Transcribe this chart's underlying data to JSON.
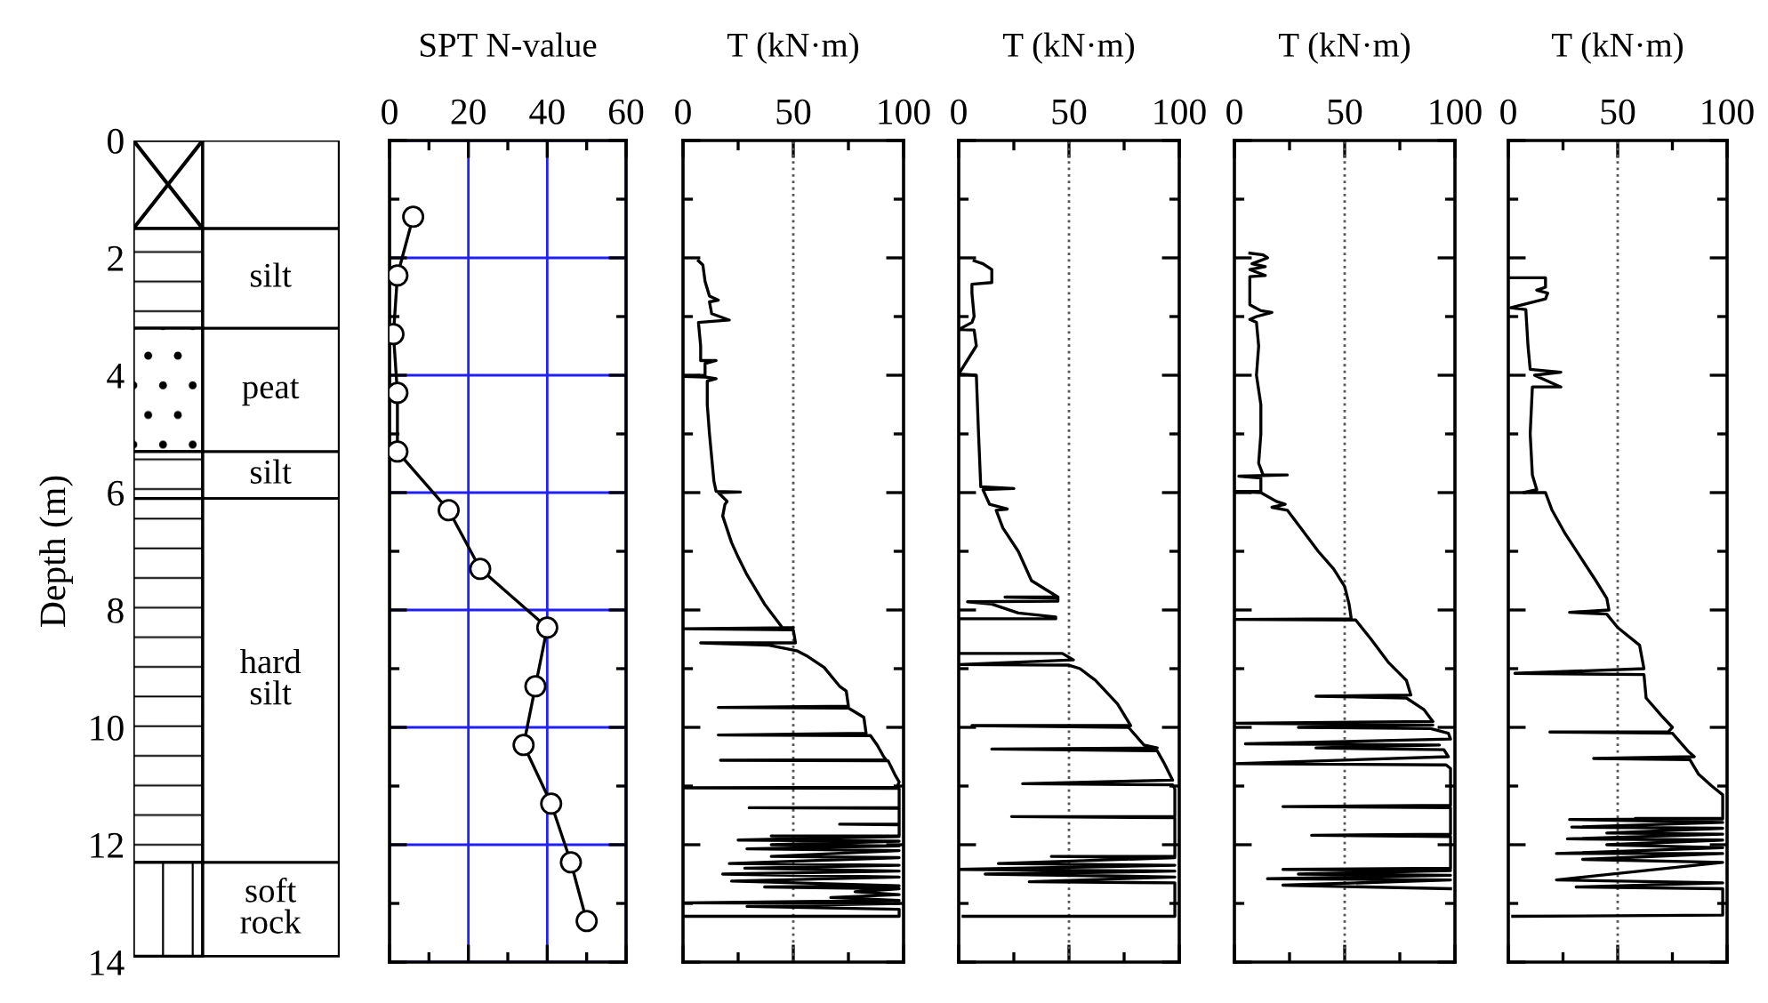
{
  "chart_data": [
    {
      "type": "bar",
      "stacked": true,
      "categories": [
        null
      ],
      "ylabel": "Depth (m)",
      "ylim": [
        14,
        0
      ],
      "yticks": [
        0,
        2,
        4,
        6,
        8,
        10,
        12,
        14
      ],
      "tick_labels": "y",
      "series": [
        {
          "color": "#ffffff",
          "values": [
            1.5
          ]
        },
        {
          "name": "silt",
          "color": "#ffffff",
          "values": [
            1.7
          ]
        },
        {
          "name": "peat",
          "color": "#ffffff",
          "values": [
            2.1
          ]
        },
        {
          "name": "silt",
          "color": "#ffffff",
          "values": [
            0.8
          ]
        },
        {
          "name": "hard\nsilt",
          "color": "#ffffff",
          "values": [
            6.2
          ]
        },
        {
          "name": "soft\nrock",
          "color": "#ffffff",
          "values": [
            1.6
          ]
        }
      ]
    },
    {
      "type": "line",
      "title": "SPT N-value",
      "marker": "circle",
      "grid": true,
      "tick_labels": "x",
      "xlim": [
        0,
        60
      ],
      "xticks": [
        0,
        20,
        40,
        60
      ],
      "ylim": [
        14,
        0
      ],
      "yticks": [
        {
          "value": 0,
          "label": null
        },
        {
          "value": 2,
          "label": null
        },
        {
          "value": 4,
          "label": null
        },
        {
          "value": 6,
          "label": null
        },
        {
          "value": 8,
          "label": null
        },
        {
          "value": 10,
          "label": null
        },
        {
          "value": 12,
          "label": null
        },
        {
          "value": 14,
          "label": null
        }
      ],
      "series": [
        {
          "color": "#000000",
          "x": [
            6,
            2,
            1,
            2,
            2,
            15,
            23,
            40,
            37,
            34,
            41,
            46,
            50
          ],
          "values": [
            1.3,
            2.3,
            3.3,
            4.3,
            5.3,
            6.3,
            7.3,
            8.3,
            9.3,
            10.3,
            11.3,
            12.3,
            13.3
          ]
        }
      ]
    },
    {
      "type": "line",
      "title": "T (kN·m)",
      "tick_labels": "x",
      "xlim": [
        0,
        100
      ],
      "xticks": [
        0,
        50,
        100
      ],
      "ylim": [
        14,
        0
      ],
      "yticks": [
        {
          "value": 0,
          "label": null
        },
        {
          "value": 2,
          "label": null
        },
        {
          "value": 4,
          "label": null
        },
        {
          "value": 6,
          "label": null
        },
        {
          "value": 8,
          "label": null
        },
        {
          "value": 10,
          "label": null
        },
        {
          "value": 12,
          "label": null
        },
        {
          "value": 14,
          "label": null
        }
      ],
      "ref_lines": [
        {
          "axis": "x",
          "value": 50,
          "line_style": "dotted",
          "color": "#555555"
        }
      ],
      "series": [
        {
          "color": "#000000",
          "x": [
            7,
            9,
            10,
            12,
            16,
            12,
            13,
            21,
            7,
            8,
            8,
            15,
            10,
            10,
            0,
            10,
            15,
            11,
            11,
            12,
            14,
            15,
            26,
            16,
            20,
            19,
            18,
            22,
            25,
            29,
            37,
            45,
            50,
            0,
            50,
            51,
            8,
            39,
            52,
            56,
            64,
            71,
            74,
            75,
            16,
            75,
            82,
            83,
            16,
            85,
            88,
            91,
            92,
            17,
            93,
            96,
            98,
            97,
            0,
            98,
            98,
            30,
            98,
            98,
            71,
            98,
            98,
            40,
            98,
            25,
            98,
            40,
            98,
            29,
            98,
            40,
            98,
            21,
            98,
            28,
            98,
            18,
            98,
            22,
            98,
            37,
            98,
            78,
            98,
            67,
            98,
            0,
            98,
            29,
            98,
            98,
            0
          ],
          "values": [
            2.05,
            2.12,
            2.4,
            2.65,
            2.72,
            2.75,
            2.95,
            3.06,
            3.1,
            3.5,
            3.75,
            3.75,
            3.8,
            4.0,
            4.02,
            4.03,
            4.06,
            4.1,
            4.5,
            5.0,
            5.8,
            5.98,
            5.99,
            6.0,
            6.15,
            6.2,
            6.4,
            6.85,
            7.1,
            7.4,
            7.9,
            8.3,
            8.3,
            8.32,
            8.34,
            8.56,
            8.56,
            8.6,
            8.7,
            8.78,
            8.98,
            9.3,
            9.38,
            9.64,
            9.66,
            9.67,
            9.83,
            10.1,
            10.13,
            10.14,
            10.3,
            10.5,
            10.55,
            10.56,
            10.57,
            10.8,
            10.93,
            11.02,
            11.03,
            11.04,
            11.37,
            11.37,
            11.38,
            11.65,
            11.65,
            11.66,
            11.85,
            11.85,
            11.86,
            11.92,
            11.94,
            12.0,
            12.02,
            12.07,
            12.1,
            12.2,
            12.22,
            12.32,
            12.35,
            12.4,
            12.45,
            12.5,
            12.55,
            12.62,
            12.7,
            12.72,
            12.75,
            12.8,
            12.85,
            12.9,
            12.95,
            12.99,
            13.0,
            13.05,
            13.1,
            13.22,
            13.22
          ]
        }
      ]
    },
    {
      "type": "line",
      "title": "T (kN·m)",
      "tick_labels": "x",
      "xlim": [
        0,
        100
      ],
      "xticks": [
        0,
        50,
        100
      ],
      "ylim": [
        14,
        0
      ],
      "yticks": [
        {
          "value": 0,
          "label": null
        },
        {
          "value": 2,
          "label": null
        },
        {
          "value": 4,
          "label": null
        },
        {
          "value": 6,
          "label": null
        },
        {
          "value": 8,
          "label": null
        },
        {
          "value": 10,
          "label": null
        },
        {
          "value": 12,
          "label": null
        },
        {
          "value": 14,
          "label": null
        }
      ],
      "ref_lines": [
        {
          "axis": "x",
          "value": 50,
          "line_style": "dotted",
          "color": "#555555"
        }
      ],
      "series": [
        {
          "color": "#000000",
          "x": [
            7,
            11,
            15,
            15,
            6,
            6,
            7,
            6,
            0,
            7,
            8,
            0,
            8,
            9,
            10,
            25,
            11,
            14,
            22,
            17,
            20,
            27,
            33,
            45,
            21,
            45,
            45,
            4,
            15,
            27,
            44,
            44,
            0,
            0,
            47,
            52,
            0,
            50,
            55,
            62,
            72,
            78,
            6,
            77,
            84,
            90,
            15,
            90,
            93,
            97,
            29,
            97,
            98,
            98,
            24,
            98,
            98,
            42,
            98,
            18,
            98,
            0,
            98,
            12,
            98,
            32,
            98,
            98,
            2
          ],
          "values": [
            2.05,
            2.1,
            2.2,
            2.42,
            2.45,
            2.6,
            3.0,
            3.1,
            3.22,
            3.23,
            3.5,
            3.98,
            4.0,
            5.0,
            5.9,
            5.93,
            5.95,
            6.2,
            6.28,
            6.3,
            6.6,
            7.0,
            7.5,
            7.78,
            7.78,
            7.8,
            7.85,
            7.86,
            7.9,
            8.05,
            8.12,
            8.15,
            8.15,
            8.74,
            8.74,
            8.85,
            8.93,
            8.94,
            9.0,
            9.2,
            9.6,
            9.97,
            9.97,
            10.0,
            10.3,
            10.35,
            10.37,
            10.4,
            10.6,
            10.9,
            10.96,
            10.98,
            11.05,
            11.52,
            11.52,
            11.54,
            12.2,
            12.2,
            12.22,
            12.32,
            12.35,
            12.42,
            12.45,
            12.5,
            12.55,
            12.63,
            12.65,
            13.22,
            13.22
          ]
        }
      ]
    },
    {
      "type": "line",
      "title": "T (kN·m)",
      "tick_labels": "x",
      "xlim": [
        0,
        100
      ],
      "xticks": [
        0,
        50,
        100
      ],
      "ylim": [
        14,
        0
      ],
      "yticks": [
        {
          "value": 0,
          "label": null
        },
        {
          "value": 2,
          "label": null
        },
        {
          "value": 4,
          "label": null
        },
        {
          "value": 6,
          "label": null
        },
        {
          "value": 8,
          "label": null
        },
        {
          "value": 10,
          "label": null
        },
        {
          "value": 12,
          "label": null
        },
        {
          "value": 14,
          "label": null
        }
      ],
      "ref_lines": [
        {
          "axis": "x",
          "value": 50,
          "line_style": "dotted",
          "color": "#555555"
        }
      ],
      "series": [
        {
          "color": "#000000",
          "x": [
            7,
            13,
            15,
            8,
            14,
            7,
            14,
            7,
            7,
            12,
            17,
            10,
            7,
            10,
            11,
            10,
            12,
            12,
            11,
            13,
            24,
            2,
            12,
            12,
            0,
            12,
            19,
            23,
            17,
            24,
            30,
            38,
            45,
            50,
            52,
            53,
            0,
            55,
            62,
            70,
            78,
            80,
            37,
            78,
            86,
            90,
            0,
            90,
            29,
            89,
            97,
            98,
            5,
            93,
            37,
            95,
            97,
            0,
            96,
            98,
            98,
            22,
            98,
            98,
            35,
            98,
            98,
            22,
            98,
            29,
            98,
            15,
            98,
            22,
            98
          ],
          "values": [
            1.92,
            1.95,
            2.0,
            2.1,
            2.15,
            2.2,
            2.3,
            2.32,
            2.8,
            2.9,
            2.93,
            3.0,
            3.05,
            3.1,
            3.5,
            4.0,
            4.5,
            5.0,
            5.5,
            5.7,
            5.7,
            5.72,
            5.75,
            5.98,
            5.98,
            6.0,
            6.15,
            6.2,
            6.25,
            6.3,
            6.6,
            7.0,
            7.3,
            7.6,
            7.9,
            8.15,
            8.16,
            8.17,
            8.5,
            8.9,
            9.2,
            9.45,
            9.47,
            9.5,
            9.7,
            9.9,
            9.93,
            9.96,
            10.0,
            10.02,
            10.1,
            10.2,
            10.28,
            10.3,
            10.35,
            10.38,
            10.5,
            10.62,
            10.64,
            10.7,
            11.33,
            11.35,
            11.37,
            11.82,
            11.84,
            11.86,
            12.4,
            12.42,
            12.44,
            12.5,
            12.52,
            12.58,
            12.6,
            12.69,
            12.75
          ]
        }
      ]
    },
    {
      "type": "line",
      "title": "T (kN·m)",
      "tick_labels": "x",
      "xlim": [
        0,
        100
      ],
      "xticks": [
        0,
        50,
        100
      ],
      "ylim": [
        14,
        0
      ],
      "yticks": [
        {
          "value": 0,
          "label": null
        },
        {
          "value": 2,
          "label": null
        },
        {
          "value": 4,
          "label": null
        },
        {
          "value": 6,
          "label": null
        },
        {
          "value": 8,
          "label": null
        },
        {
          "value": 10,
          "label": null
        },
        {
          "value": 12,
          "label": null
        },
        {
          "value": 14,
          "label": null
        }
      ],
      "ref_lines": [
        {
          "axis": "x",
          "value": 50,
          "line_style": "dotted",
          "color": "#555555"
        }
      ],
      "series": [
        {
          "color": "#000000",
          "x": [
            0,
            17,
            17,
            13,
            18,
            17,
            1,
            8,
            9,
            10,
            24,
            12,
            24,
            11,
            10,
            11,
            13,
            7,
            17,
            20,
            26,
            33,
            40,
            45,
            46,
            28,
            45,
            50,
            60,
            62,
            3,
            62,
            63,
            70,
            75,
            73,
            19,
            75,
            82,
            85,
            39,
            83,
            87,
            93,
            98,
            98,
            58,
            98,
            28,
            98,
            29,
            98,
            45,
            98,
            27,
            98,
            45,
            98,
            22,
            98,
            34,
            98,
            22,
            98,
            31,
            98,
            98,
            2
          ],
          "values": [
            2.34,
            2.34,
            2.5,
            2.55,
            2.6,
            2.7,
            2.85,
            2.88,
            3.5,
            3.9,
            3.95,
            4.0,
            4.2,
            4.2,
            5.0,
            5.7,
            5.95,
            6.0,
            6.0,
            6.3,
            6.7,
            7.1,
            7.5,
            7.8,
            8.0,
            8.04,
            8.07,
            8.3,
            8.6,
            9.0,
            9.08,
            9.1,
            9.5,
            9.8,
            10.0,
            10.08,
            10.08,
            10.1,
            10.4,
            10.5,
            10.53,
            10.55,
            10.8,
            11.0,
            11.15,
            11.55,
            11.55,
            11.56,
            11.57,
            11.62,
            11.7,
            11.72,
            11.8,
            11.82,
            11.9,
            11.92,
            12.0,
            12.05,
            12.15,
            12.15,
            12.25,
            12.3,
            12.6,
            12.65,
            12.72,
            12.75,
            13.2,
            13.22
          ]
        }
      ]
    }
  ]
}
